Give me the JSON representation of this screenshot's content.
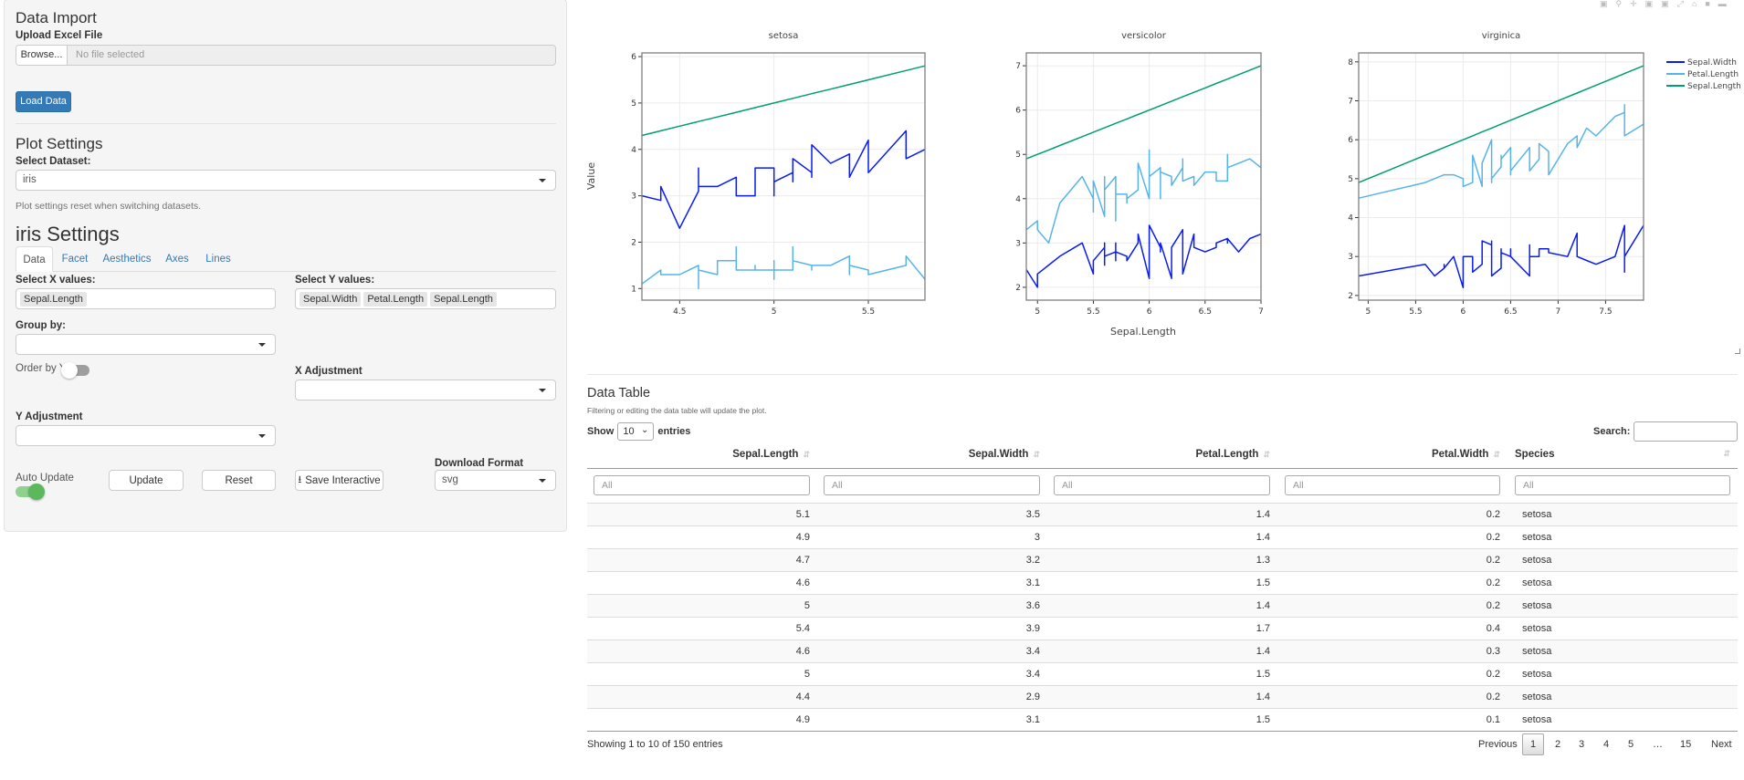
{
  "sidebar": {
    "data_import": {
      "title": "Data Import",
      "upload_label": "Upload Excel File",
      "browse_label": "Browse...",
      "file_placeholder": "No file selected",
      "load_button": "Load Data"
    },
    "plot_settings": {
      "title": "Plot Settings",
      "dataset_label": "Select Dataset:",
      "dataset_value": "iris",
      "helper": "Plot settings reset when switching datasets."
    },
    "dataset_settings": {
      "title": "iris Settings",
      "tabs": [
        {
          "label": "Data",
          "active": true
        },
        {
          "label": "Facet",
          "active": false
        },
        {
          "label": "Aesthetics",
          "active": false
        },
        {
          "label": "Axes",
          "active": false
        },
        {
          "label": "Lines",
          "active": false
        }
      ],
      "x_label": "Select X values:",
      "x_values": [
        "Sepal.Length"
      ],
      "y_label": "Select Y values:",
      "y_values": [
        "Sepal.Width",
        "Petal.Length",
        "Sepal.Length"
      ],
      "group_label": "Group by:",
      "group_value": "",
      "order_label": "Order by Y",
      "order_on": false,
      "x_adj_label": "X Adjustment",
      "x_adj_value": "",
      "y_adj_label": "Y Adjustment",
      "y_adj_value": "",
      "auto_update_label": "Auto Update",
      "auto_update_on": true,
      "update_button": "Update",
      "reset_button": "Reset",
      "save_button": "Save Interactive",
      "download_label": "Download Format",
      "download_value": "svg"
    }
  },
  "colors": {
    "accent": "#337ab7",
    "toggle_on": "#5cb85c"
  },
  "chart_data": {
    "type": "line",
    "xlabel": "Sepal.Length",
    "ylabel": "Value",
    "grid": true,
    "legend_position": "right",
    "legend": [
      {
        "name": "Sepal.Width",
        "color": "#0a1cf0"
      },
      {
        "name": "Petal.Length",
        "color": "#56b4e9"
      },
      {
        "name": "Sepal.Length",
        "color": "#009e73"
      }
    ],
    "facets": [
      {
        "title": "setosa",
        "xlim": [
          4.3,
          5.8
        ],
        "ylim": [
          0.75,
          6.08
        ],
        "xticks": [
          "4.5",
          "5",
          "5.5"
        ],
        "yticks": [
          "1",
          "2",
          "3",
          "4",
          "5",
          "6"
        ],
        "x": [
          5.1,
          4.9,
          4.7,
          4.6,
          5.0,
          5.4,
          4.6,
          5.0,
          4.4,
          4.9,
          5.4,
          4.8,
          4.8,
          4.3,
          5.8,
          5.7,
          5.4,
          5.1,
          5.7,
          5.1,
          5.4,
          5.1,
          4.6,
          5.1,
          4.8,
          5.0,
          5.0,
          5.2,
          5.2,
          4.7,
          4.8,
          5.4,
          5.2,
          5.5,
          4.9,
          5.0,
          5.5,
          4.9,
          4.4,
          5.1,
          5.0,
          4.5,
          4.4,
          5.0,
          5.1,
          4.8,
          5.1,
          4.6,
          5.3,
          5.0
        ],
        "series": [
          {
            "name": "Sepal.Width",
            "values": [
              3.5,
              3.0,
              3.2,
              3.1,
              3.6,
              3.9,
              3.4,
              3.4,
              2.9,
              3.1,
              3.7,
              3.4,
              3.0,
              3.0,
              4.0,
              4.4,
              3.9,
              3.5,
              3.8,
              3.8,
              3.4,
              3.7,
              3.6,
              3.3,
              3.4,
              3.0,
              3.4,
              3.5,
              3.4,
              3.2,
              3.1,
              3.4,
              4.1,
              4.2,
              3.1,
              3.2,
              3.5,
              3.6,
              3.0,
              3.4,
              3.5,
              2.3,
              3.2,
              3.5,
              3.8,
              3.0,
              3.8,
              3.2,
              3.7,
              3.3
            ]
          },
          {
            "name": "Petal.Length",
            "values": [
              1.4,
              1.4,
              1.3,
              1.5,
              1.4,
              1.7,
              1.4,
              1.5,
              1.4,
              1.5,
              1.5,
              1.6,
              1.4,
              1.1,
              1.2,
              1.5,
              1.3,
              1.4,
              1.7,
              1.5,
              1.7,
              1.5,
              1.0,
              1.7,
              1.9,
              1.6,
              1.6,
              1.5,
              1.4,
              1.6,
              1.6,
              1.5,
              1.5,
              1.4,
              1.5,
              1.2,
              1.3,
              1.4,
              1.3,
              1.5,
              1.3,
              1.3,
              1.3,
              1.6,
              1.9,
              1.4,
              1.6,
              1.4,
              1.5,
              1.4
            ]
          },
          {
            "name": "Sepal.Length",
            "values": [
              5.1,
              4.9,
              4.7,
              4.6,
              5.0,
              5.4,
              4.6,
              5.0,
              4.4,
              4.9,
              5.4,
              4.8,
              4.8,
              4.3,
              5.8,
              5.7,
              5.4,
              5.1,
              5.7,
              5.1,
              5.4,
              5.1,
              4.6,
              5.1,
              4.8,
              5.0,
              5.0,
              5.2,
              5.2,
              4.7,
              4.8,
              5.4,
              5.2,
              5.5,
              4.9,
              5.0,
              5.5,
              4.9,
              4.4,
              5.1,
              5.0,
              4.5,
              4.4,
              5.0,
              5.1,
              4.8,
              5.1,
              4.6,
              5.3,
              5.0
            ]
          }
        ]
      },
      {
        "title": "versicolor",
        "xlim": [
          4.9,
          7.0
        ],
        "ylim": [
          1.71,
          7.29
        ],
        "xticks": [
          "5",
          "5.5",
          "6",
          "6.5",
          "7"
        ],
        "yticks": [
          "2",
          "3",
          "4",
          "5",
          "6",
          "7"
        ],
        "x": [
          7.0,
          6.4,
          6.9,
          5.5,
          6.5,
          5.7,
          6.3,
          4.9,
          6.6,
          5.2,
          5.0,
          5.9,
          6.0,
          6.1,
          5.6,
          6.7,
          5.6,
          5.8,
          6.2,
          5.6,
          5.9,
          6.1,
          6.3,
          6.1,
          6.4,
          6.6,
          6.8,
          6.7,
          6.0,
          5.7,
          5.5,
          5.5,
          5.8,
          6.0,
          5.4,
          6.0,
          6.7,
          6.3,
          5.6,
          5.5,
          5.5,
          6.1,
          5.8,
          5.0,
          5.6,
          5.7,
          5.7,
          6.2,
          5.1,
          5.7
        ],
        "series": [
          {
            "name": "Sepal.Width",
            "values": [
              3.2,
              3.2,
              3.1,
              2.3,
              2.8,
              2.8,
              3.3,
              2.4,
              2.9,
              2.7,
              2.0,
              3.0,
              2.2,
              2.9,
              2.9,
              3.1,
              3.0,
              2.7,
              2.2,
              2.5,
              3.2,
              2.8,
              2.5,
              2.8,
              2.9,
              3.0,
              2.8,
              3.0,
              2.9,
              2.6,
              2.4,
              2.4,
              2.7,
              2.7,
              3.0,
              3.4,
              3.1,
              2.3,
              3.0,
              2.5,
              2.6,
              3.0,
              2.6,
              2.3,
              2.7,
              3.0,
              2.9,
              2.9,
              2.5,
              2.8
            ]
          },
          {
            "name": "Petal.Length",
            "values": [
              4.7,
              4.5,
              4.9,
              4.0,
              4.6,
              4.5,
              4.7,
              3.3,
              4.6,
              3.9,
              3.5,
              4.2,
              4.0,
              4.7,
              3.6,
              4.4,
              4.5,
              4.1,
              4.5,
              3.9,
              4.8,
              4.0,
              4.9,
              4.7,
              4.3,
              4.4,
              4.8,
              5.0,
              4.5,
              3.5,
              3.8,
              3.7,
              3.9,
              5.1,
              4.5,
              4.5,
              4.7,
              4.4,
              4.1,
              4.0,
              4.4,
              4.6,
              4.0,
              3.3,
              4.2,
              4.2,
              4.2,
              4.3,
              3.0,
              4.1
            ]
          },
          {
            "name": "Sepal.Length",
            "values": [
              7.0,
              6.4,
              6.9,
              5.5,
              6.5,
              5.7,
              6.3,
              4.9,
              6.6,
              5.2,
              5.0,
              5.9,
              6.0,
              6.1,
              5.6,
              6.7,
              5.6,
              5.8,
              6.2,
              5.6,
              5.9,
              6.1,
              6.3,
              6.1,
              6.4,
              6.6,
              6.8,
              6.7,
              6.0,
              5.7,
              5.5,
              5.5,
              5.8,
              6.0,
              5.4,
              6.0,
              6.7,
              6.3,
              5.6,
              5.5,
              5.5,
              6.1,
              5.8,
              5.0,
              5.6,
              5.7,
              5.7,
              6.2,
              5.1,
              5.7
            ]
          }
        ]
      },
      {
        "title": "virginica",
        "xlim": [
          4.9,
          7.9
        ],
        "ylim": [
          1.88,
          8.23
        ],
        "xticks": [
          "5",
          "5.5",
          "6",
          "6.5",
          "7",
          "7.5"
        ],
        "yticks": [
          "2",
          "3",
          "4",
          "5",
          "6",
          "7",
          "8"
        ],
        "x": [
          6.3,
          5.8,
          7.1,
          6.3,
          6.5,
          7.6,
          4.9,
          7.3,
          6.7,
          7.2,
          6.5,
          6.4,
          6.8,
          5.7,
          5.8,
          6.4,
          6.5,
          7.7,
          7.7,
          6.0,
          6.9,
          5.6,
          7.7,
          6.3,
          6.7,
          7.2,
          6.2,
          6.1,
          6.4,
          7.2,
          7.4,
          7.9,
          6.4,
          6.3,
          6.1,
          7.7,
          6.3,
          6.4,
          6.0,
          6.9,
          6.7,
          6.9,
          5.8,
          6.8,
          6.7,
          6.7,
          6.3,
          6.5,
          6.2,
          5.9
        ],
        "series": [
          {
            "name": "Sepal.Width",
            "values": [
              3.3,
              2.7,
              3.0,
              2.9,
              3.0,
              3.0,
              2.5,
              2.9,
              2.5,
              3.6,
              3.2,
              2.7,
              3.0,
              2.5,
              2.8,
              3.2,
              3.0,
              3.8,
              2.6,
              2.2,
              3.2,
              2.8,
              2.8,
              2.7,
              3.3,
              3.2,
              2.8,
              3.0,
              2.8,
              3.0,
              2.8,
              3.8,
              2.8,
              2.8,
              2.6,
              3.0,
              3.4,
              3.1,
              3.0,
              3.1,
              3.1,
              3.1,
              2.7,
              3.2,
              3.3,
              3.0,
              2.5,
              3.0,
              3.4,
              3.0
            ]
          },
          {
            "name": "Petal.Length",
            "values": [
              6.0,
              5.1,
              5.9,
              5.6,
              5.8,
              6.6,
              4.5,
              6.3,
              5.8,
              6.1,
              5.1,
              5.3,
              5.5,
              5.0,
              5.1,
              5.3,
              5.5,
              6.7,
              6.9,
              5.0,
              5.7,
              4.9,
              6.7,
              4.9,
              5.7,
              6.0,
              4.8,
              4.9,
              5.6,
              5.8,
              6.1,
              6.4,
              5.6,
              5.1,
              5.6,
              6.1,
              5.6,
              5.5,
              4.8,
              5.4,
              5.6,
              5.1,
              5.1,
              5.9,
              5.7,
              5.2,
              5.0,
              5.2,
              5.4,
              5.1
            ]
          },
          {
            "name": "Sepal.Length",
            "values": [
              6.3,
              5.8,
              7.1,
              6.3,
              6.5,
              7.6,
              4.9,
              7.3,
              6.7,
              7.2,
              6.5,
              6.4,
              6.8,
              5.7,
              5.8,
              6.4,
              6.5,
              7.7,
              7.7,
              6.0,
              6.9,
              5.6,
              7.7,
              6.3,
              6.7,
              7.2,
              6.2,
              6.1,
              6.4,
              7.2,
              7.4,
              7.9,
              6.4,
              6.3,
              6.1,
              7.7,
              6.3,
              6.4,
              6.0,
              6.9,
              6.7,
              6.9,
              5.8,
              6.8,
              6.7,
              6.7,
              6.3,
              6.5,
              6.2,
              5.9
            ]
          }
        ]
      }
    ]
  },
  "table": {
    "title": "Data Table",
    "subtitle": "Filtering or editing the data table will update the plot.",
    "show_label": "Show",
    "entries_label": "entries",
    "page_size": "10",
    "search_label": "Search:",
    "search_value": "",
    "columns": [
      "Sepal.Length",
      "Sepal.Width",
      "Petal.Length",
      "Petal.Width",
      "Species"
    ],
    "filter_placeholder": "All",
    "rows": [
      [
        "5.1",
        "3.5",
        "1.4",
        "0.2",
        "setosa"
      ],
      [
        "4.9",
        "3",
        "1.4",
        "0.2",
        "setosa"
      ],
      [
        "4.7",
        "3.2",
        "1.3",
        "0.2",
        "setosa"
      ],
      [
        "4.6",
        "3.1",
        "1.5",
        "0.2",
        "setosa"
      ],
      [
        "5",
        "3.6",
        "1.4",
        "0.2",
        "setosa"
      ],
      [
        "5.4",
        "3.9",
        "1.7",
        "0.4",
        "setosa"
      ],
      [
        "4.6",
        "3.4",
        "1.4",
        "0.3",
        "setosa"
      ],
      [
        "5",
        "3.4",
        "1.5",
        "0.2",
        "setosa"
      ],
      [
        "4.4",
        "2.9",
        "1.4",
        "0.2",
        "setosa"
      ],
      [
        "4.9",
        "3.1",
        "1.5",
        "0.1",
        "setosa"
      ]
    ],
    "info": "Showing 1 to 10 of 150 entries",
    "pagination": {
      "previous": "Previous",
      "pages": [
        "1",
        "2",
        "3",
        "4",
        "5",
        "…",
        "15"
      ],
      "current": "1",
      "next": "Next"
    }
  }
}
